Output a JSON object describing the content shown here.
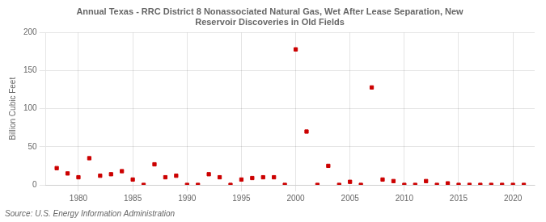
{
  "chart_data": {
    "type": "scatter",
    "title": "Annual Texas - RRC District 8 Nonassociated Natural Gas, Wet After Lease Separation, New\nReservoir Discoveries in Old Fields",
    "ylabel": "Billion Cubic Feet",
    "source": "Source: U.S. Energy Information Administration",
    "color": "#cc0000",
    "marker": "square",
    "grid": true,
    "xlim": [
      1977,
      2022
    ],
    "ylim": [
      0,
      200
    ],
    "xticks": [
      1980,
      1985,
      1990,
      1995,
      2000,
      2005,
      2010,
      2015,
      2020
    ],
    "yticks": [
      0,
      50,
      100,
      150,
      200
    ],
    "x": [
      1978,
      1979,
      1980,
      1981,
      1982,
      1983,
      1984,
      1985,
      1986,
      1987,
      1988,
      1989,
      1990,
      1991,
      1992,
      1993,
      1994,
      1995,
      1996,
      1997,
      1998,
      1999,
      2000,
      2001,
      2002,
      2003,
      2004,
      2005,
      2006,
      2007,
      2008,
      2009,
      2010,
      2011,
      2012,
      2013,
      2014,
      2015,
      2016,
      2017,
      2018,
      2019,
      2020,
      2021
    ],
    "values": [
      22,
      15,
      10,
      35,
      12,
      14,
      18,
      7,
      0,
      27,
      10,
      12,
      0,
      0,
      14,
      10,
      0,
      7,
      9,
      10,
      10,
      0,
      178,
      70,
      0,
      25,
      0,
      4,
      0,
      128,
      7,
      5,
      0,
      0,
      5,
      0,
      2,
      0,
      0,
      0,
      0,
      0,
      0,
      0
    ]
  }
}
